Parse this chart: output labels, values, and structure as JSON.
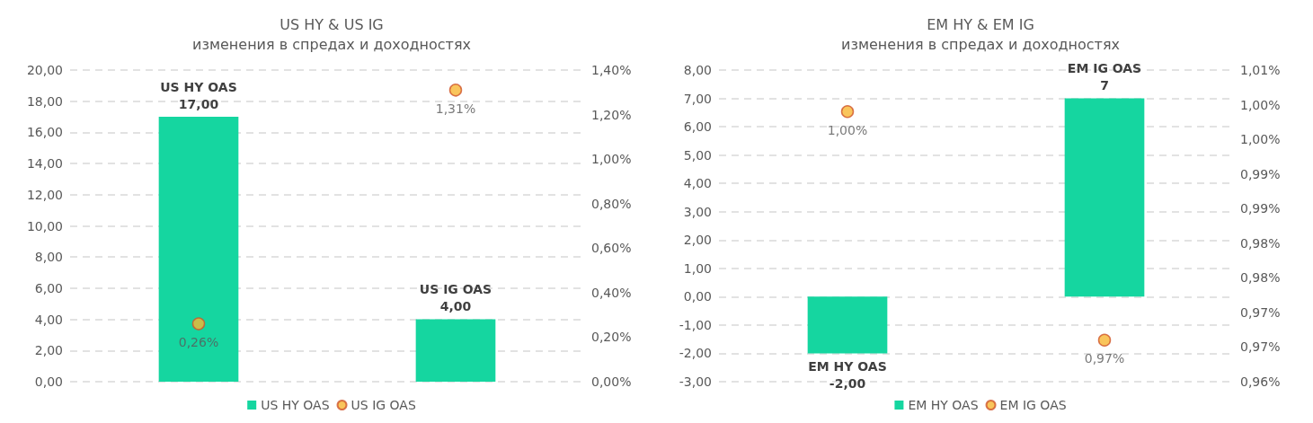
{
  "chart_data": [
    {
      "type": "bar",
      "title": "US HY & US IG",
      "subtitle": "изменения в спредах и доходностях",
      "categories": [
        null,
        null
      ],
      "tick_labels": "y",
      "grid": "y",
      "legend": "bottom",
      "ylim": [
        0,
        20
      ],
      "yticks": [
        {
          "value": 0,
          "label": "0,00"
        },
        {
          "value": 2,
          "label": "2,00"
        },
        {
          "value": 4,
          "label": "4,00"
        },
        {
          "value": 6,
          "label": "6,00"
        },
        {
          "value": 8,
          "label": "8,00"
        },
        {
          "value": 10,
          "label": "10,00"
        },
        {
          "value": 12,
          "label": "12,00"
        },
        {
          "value": 14,
          "label": "14,00"
        },
        {
          "value": 16,
          "label": "16,00"
        },
        {
          "value": 18,
          "label": "18,00"
        },
        {
          "value": 20,
          "label": "20,00"
        }
      ],
      "y2lim": [
        0,
        1.4
      ],
      "y2ticks": [
        {
          "value": 0,
          "label": "0,00%"
        },
        {
          "value": 0.2,
          "label": "0,20%"
        },
        {
          "value": 0.4,
          "label": "0,40%"
        },
        {
          "value": 0.6,
          "label": "0,60%"
        },
        {
          "value": 0.8,
          "label": "0,80%"
        },
        {
          "value": 1,
          "label": "1,00%"
        },
        {
          "value": 1.2,
          "label": "1,20%"
        },
        {
          "value": 1.4,
          "label": "1,40%"
        }
      ],
      "series": [
        {
          "name": "US HY OAS",
          "color": "#15d6a0",
          "values": [
            17,
            4
          ],
          "value_labels": [
            "US HY OAS\n17,00",
            "US IG OAS\n4,00"
          ]
        },
        {
          "name": "US IG OAS",
          "type": "scatter",
          "axis": "y2",
          "marker": "circle",
          "color": "#f7b733",
          "values": [
            0.26,
            1.31
          ],
          "value_labels": [
            "0,26%",
            "1,31%"
          ]
        }
      ]
    },
    {
      "type": "bar",
      "title": "EM HY & EM IG",
      "subtitle": "изменения в спредах и доходностях",
      "categories": [
        null,
        null
      ],
      "tick_labels": "y",
      "grid": "y",
      "legend": "bottom",
      "ylim": [
        -3,
        8
      ],
      "yticks": [
        {
          "value": -3,
          "label": "-3,00"
        },
        {
          "value": -2,
          "label": "-2,00"
        },
        {
          "value": -1,
          "label": "-1,00"
        },
        {
          "value": 0,
          "label": "0,00"
        },
        {
          "value": 1,
          "label": "1,00"
        },
        {
          "value": 2,
          "label": "2,00"
        },
        {
          "value": 3,
          "label": "3,00"
        },
        {
          "value": 4,
          "label": "4,00"
        },
        {
          "value": 5,
          "label": "5,00"
        },
        {
          "value": 6,
          "label": "6,00"
        },
        {
          "value": 7,
          "label": "7,00"
        },
        {
          "value": 8,
          "label": "8,00"
        }
      ],
      "y2lim": [
        0.96,
        1.005
      ],
      "y2ticks": [
        {
          "value": 0.96,
          "label": "0,96%"
        },
        {
          "value": 0.965,
          "label": "0,97%"
        },
        {
          "value": 0.97,
          "label": "0,97%"
        },
        {
          "value": 0.975,
          "label": "0,98%"
        },
        {
          "value": 0.98,
          "label": "0,98%"
        },
        {
          "value": 0.985,
          "label": "0,99%"
        },
        {
          "value": 0.99,
          "label": "0,99%"
        },
        {
          "value": 0.995,
          "label": "1,00%"
        },
        {
          "value": 1,
          "label": "1,00%"
        },
        {
          "value": 1.005,
          "label": "1,01%"
        }
      ],
      "series": [
        {
          "name": "EM HY OAS",
          "color": "#15d6a0",
          "values": [
            -2,
            7
          ],
          "value_labels": [
            "EM HY OAS\n-2,00",
            "EM IG OAS\n7"
          ]
        },
        {
          "name": "EM IG OAS",
          "type": "scatter",
          "axis": "y2",
          "marker": "circle",
          "color": "#f7b733",
          "values": [
            0.999,
            0.966
          ],
          "value_labels": [
            "1,00%",
            "0,97%"
          ]
        }
      ]
    }
  ]
}
